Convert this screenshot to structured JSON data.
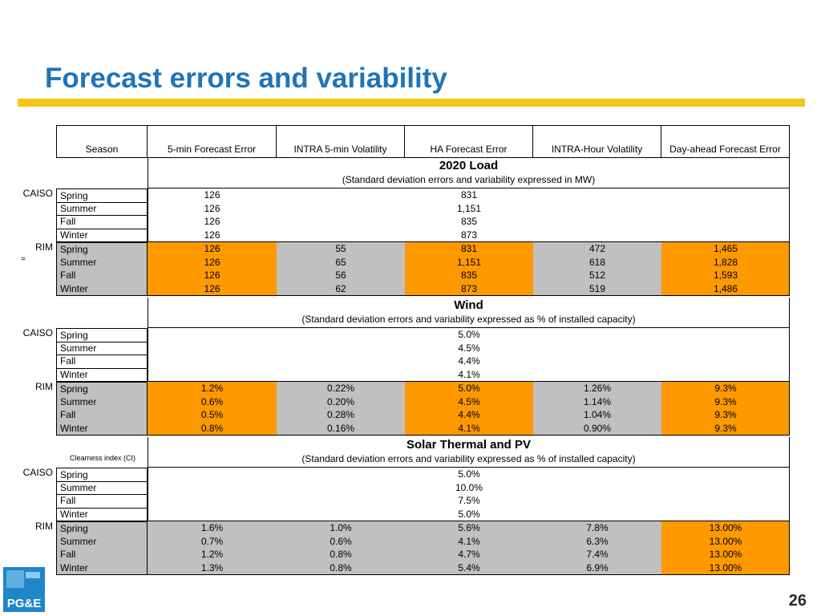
{
  "title": "Forecast errors and variability",
  "page_number": "26",
  "logo_text": "PG&E",
  "colors": {
    "title": "#1f74b8",
    "rule": "#f5c518",
    "orange": "#ff9900",
    "gray": "#c0c0c0",
    "logo": "#1f86c8"
  },
  "headers": [
    "Season",
    "5-min Forecast Error",
    "INTRA 5-min Volatility",
    "HA Forecast Error",
    "INTRA-Hour Volatility",
    "Day-ahead Forecast Error"
  ],
  "labels": {
    "caiso": "CAISO",
    "rim": "RIM",
    "eq": "=",
    "ci": "Clearness index (CI)"
  },
  "load": {
    "title": "2020 Load",
    "subtitle": "(Standard deviation errors and variability expressed in MW)",
    "caiso": [
      {
        "season": "Spring",
        "c1": "126",
        "c3": "831"
      },
      {
        "season": "Summer",
        "c1": "126",
        "c3": "1,151"
      },
      {
        "season": "Fall",
        "c1": "126",
        "c3": "835"
      },
      {
        "season": "Winter",
        "c1": "126",
        "c3": "873"
      }
    ],
    "rim": [
      {
        "season": "Spring",
        "vals": [
          "126",
          "55",
          "831",
          "472",
          "1,465"
        ]
      },
      {
        "season": "Summer",
        "vals": [
          "126",
          "65",
          "1,151",
          "618",
          "1,828"
        ]
      },
      {
        "season": "Fall",
        "vals": [
          "126",
          "56",
          "835",
          "512",
          "1,593"
        ]
      },
      {
        "season": "Winter",
        "vals": [
          "126",
          "62",
          "873",
          "519",
          "1,486"
        ]
      }
    ]
  },
  "wind": {
    "title": "Wind",
    "subtitle": "(Standard deviation errors and variability expressed as % of installed capacity)",
    "caiso": [
      {
        "season": "Spring",
        "c3": "5.0%"
      },
      {
        "season": "Summer",
        "c3": "4.5%"
      },
      {
        "season": "Fall",
        "c3": "4.4%"
      },
      {
        "season": "Winter",
        "c3": "4.1%"
      }
    ],
    "rim": [
      {
        "season": "Spring",
        "vals": [
          "1.2%",
          "0.22%",
          "5.0%",
          "1.26%",
          "9.3%"
        ]
      },
      {
        "season": "Summer",
        "vals": [
          "0.6%",
          "0.20%",
          "4.5%",
          "1.14%",
          "9.3%"
        ]
      },
      {
        "season": "Fall",
        "vals": [
          "0.5%",
          "0.28%",
          "4.4%",
          "1.04%",
          "9.3%"
        ]
      },
      {
        "season": "Winter",
        "vals": [
          "0.8%",
          "0.16%",
          "4.1%",
          "0.90%",
          "9.3%"
        ]
      }
    ]
  },
  "solar": {
    "title": "Solar Thermal and PV",
    "subtitle": "(Standard deviation errors and variability expressed as % of installed capacity)",
    "caiso": [
      {
        "season": "Spring",
        "c3": "5.0%"
      },
      {
        "season": "Summer",
        "c3": "10.0%"
      },
      {
        "season": "Fall",
        "c3": "7.5%"
      },
      {
        "season": "Winter",
        "c3": "5.0%"
      }
    ],
    "rim": [
      {
        "season": "Spring",
        "vals": [
          "1.6%",
          "1.0%",
          "5.6%",
          "7.8%",
          "13.00%"
        ]
      },
      {
        "season": "Summer",
        "vals": [
          "0.7%",
          "0.6%",
          "4.1%",
          "6.3%",
          "13.00%"
        ]
      },
      {
        "season": "Fall",
        "vals": [
          "1.2%",
          "0.8%",
          "4.7%",
          "7.4%",
          "13.00%"
        ]
      },
      {
        "season": "Winter",
        "vals": [
          "1.3%",
          "0.8%",
          "5.4%",
          "6.9%",
          "13.00%"
        ]
      }
    ]
  }
}
